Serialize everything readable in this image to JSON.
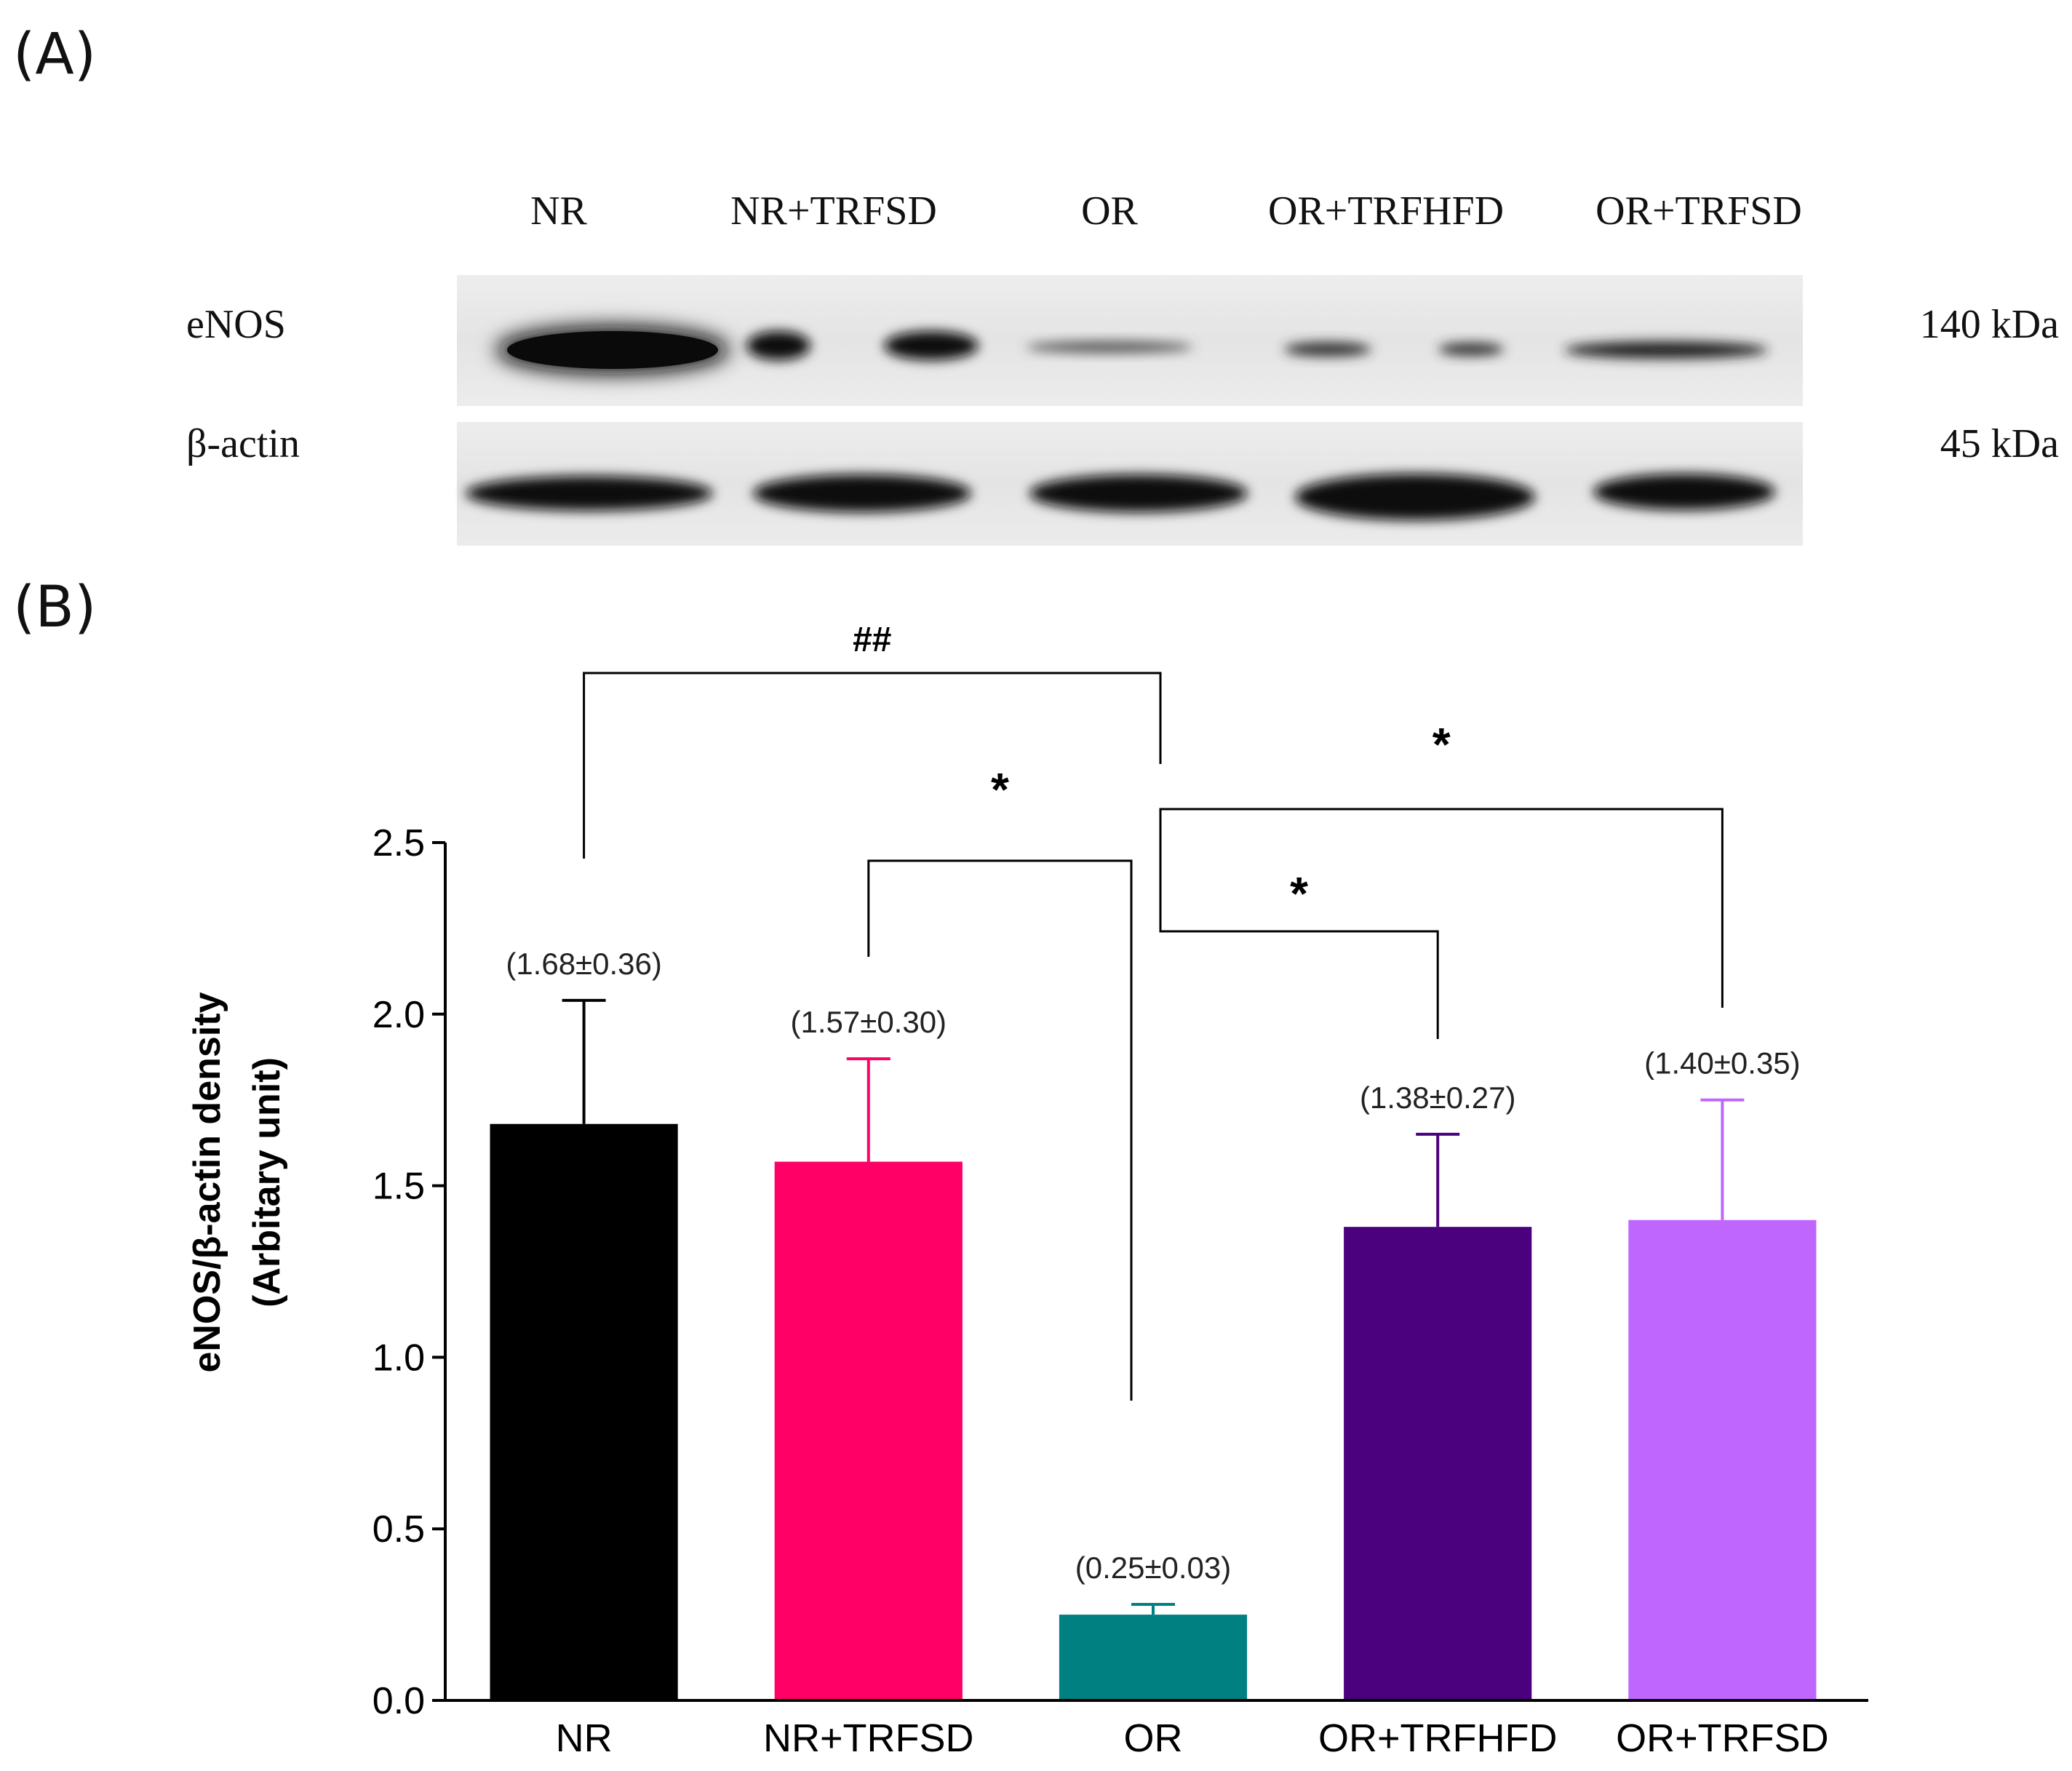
{
  "panels": {
    "a": "(A)",
    "b": "(B)"
  },
  "blot": {
    "lanes": [
      "NR",
      "NR+TRFSD",
      "OR",
      "OR+TRFHFD",
      "OR+TRFSD"
    ],
    "proteins": [
      {
        "name": "eNOS",
        "kda": "140 kDa"
      },
      {
        "name": "β-actin",
        "kda": "45 kDa"
      }
    ]
  },
  "chart_data": {
    "type": "bar",
    "categories": [
      "NR",
      "NR+TRFSD",
      "OR",
      "OR+TRFHFD",
      "OR+TRFSD"
    ],
    "values": [
      1.68,
      1.57,
      0.25,
      1.38,
      1.4
    ],
    "errors": [
      0.36,
      0.3,
      0.03,
      0.27,
      0.35
    ],
    "value_labels": [
      "(1.68±0.36)",
      "(1.57±0.30)",
      "(0.25±0.03)",
      "(1.38±0.27)",
      "(1.40±0.35)"
    ],
    "colors": [
      "#000000",
      "#ff0066",
      "#008080",
      "#4b007d",
      "#bf66ff"
    ],
    "ylabel_line1": "eNOS/β-actin density",
    "ylabel_line2": "(Arbitary unit)",
    "ylim": [
      0,
      2.5
    ],
    "yticks": [
      "0.0",
      "0.5",
      "1.0",
      "1.5",
      "2.0",
      "2.5"
    ],
    "significance": [
      {
        "from": "NR",
        "to": "OR",
        "label": "##"
      },
      {
        "from": "NR+TRFSD",
        "to": "OR",
        "label": "*"
      },
      {
        "from": "OR",
        "to": "OR+TRFSD",
        "label": "*"
      },
      {
        "from": "OR",
        "to": "OR+TRFHFD",
        "label": "*"
      }
    ]
  }
}
